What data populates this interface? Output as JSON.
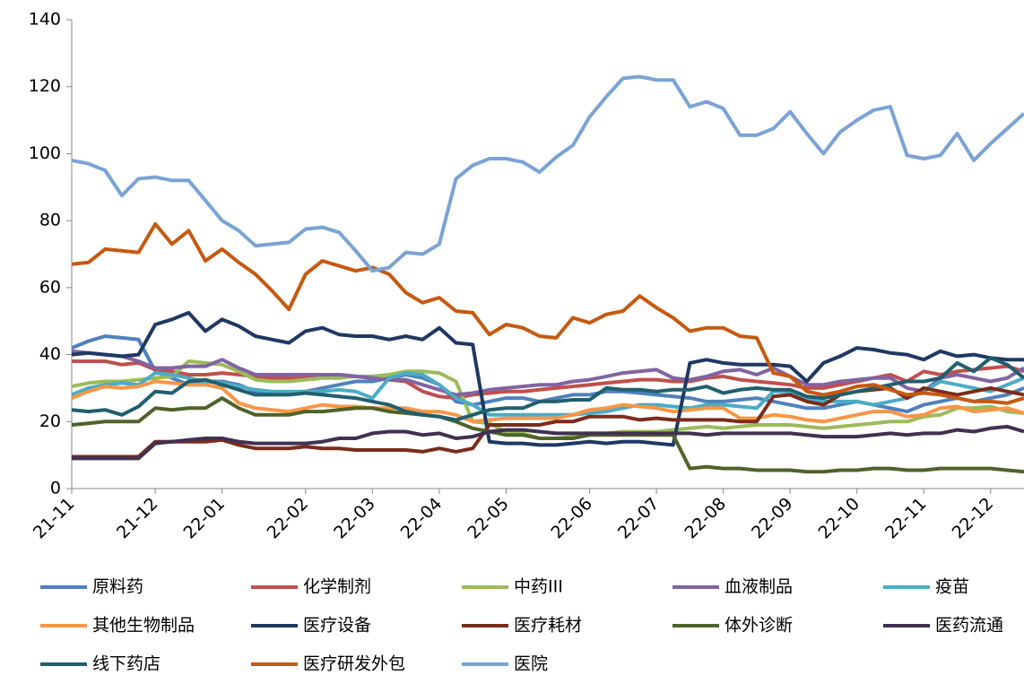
{
  "chart_data": {
    "type": "line",
    "categories": [
      "21-11",
      null,
      null,
      null,
      null,
      "21-12",
      null,
      null,
      null,
      "22-01",
      null,
      null,
      null,
      null,
      "22-02",
      null,
      null,
      null,
      "22-03",
      null,
      null,
      null,
      "22-04",
      null,
      null,
      null,
      "22-05",
      null,
      null,
      null,
      null,
      "22-06",
      null,
      null,
      null,
      "22-07",
      null,
      null,
      null,
      "22-08",
      null,
      null,
      null,
      "22-09",
      null,
      null,
      null,
      "22-10",
      null,
      null,
      null,
      "22-11",
      null,
      null,
      null,
      "22-12",
      null,
      null
    ],
    "ylim": [
      0,
      140
    ],
    "yticks": [
      0,
      20,
      40,
      60,
      80,
      100,
      120,
      140
    ],
    "grid": false,
    "legend": "bottom",
    "series": [
      {
        "name": "原料药",
        "color": "#4f81bd",
        "values": [
          42,
          44,
          45.5,
          45,
          44.5,
          35,
          33,
          31,
          32,
          32,
          31,
          29,
          28,
          28.5,
          29,
          30,
          31,
          32,
          32,
          33,
          34,
          33,
          31,
          26,
          25,
          26,
          27,
          27,
          26,
          27,
          28,
          28,
          29,
          29,
          28.5,
          28,
          27.5,
          27,
          26,
          26,
          26.5,
          27,
          26,
          25,
          24,
          24,
          25,
          26,
          25,
          24,
          23,
          25,
          26,
          27,
          26,
          27,
          28,
          30
        ]
      },
      {
        "name": "化学制剂",
        "color": "#c0504d",
        "values": [
          38,
          38,
          38,
          37,
          37.5,
          35.5,
          35,
          34,
          34,
          34.5,
          34,
          33.5,
          33,
          33,
          33.5,
          34,
          34,
          33.5,
          33,
          32.5,
          32,
          29,
          27.5,
          27,
          28,
          28.5,
          29,
          29,
          29.5,
          30,
          30.5,
          31,
          31.5,
          32,
          32.5,
          32.5,
          32,
          32,
          33,
          33.5,
          32.5,
          32,
          31.5,
          31,
          30,
          30,
          31,
          32,
          33,
          34,
          32,
          35,
          34,
          35,
          35.5,
          36,
          36.5,
          35
        ]
      },
      {
        "name": "中药III",
        "color": "#9bbb59",
        "values": [
          30.5,
          31.5,
          32,
          32,
          32.5,
          33,
          33.5,
          38,
          37.5,
          37,
          35,
          32.5,
          32,
          32,
          32.5,
          33,
          33,
          33.5,
          33.5,
          34,
          35,
          35,
          34.5,
          32,
          20,
          19.5,
          17,
          16.5,
          15,
          15,
          15.5,
          16,
          16.5,
          17,
          17,
          17,
          17.5,
          18,
          18.5,
          18,
          18.5,
          19,
          19,
          19,
          18.5,
          18,
          18.5,
          19,
          19.5,
          20,
          20,
          21.5,
          22,
          24,
          24,
          24.5,
          23,
          22.5
        ]
      },
      {
        "name": "血液制品",
        "color": "#8064a2",
        "values": [
          41,
          40.5,
          40,
          39.5,
          38,
          36,
          36,
          36.5,
          36.5,
          38.5,
          36,
          34,
          34,
          34,
          34,
          34,
          34,
          33.5,
          33,
          32.5,
          32.5,
          31,
          29.5,
          28,
          28.5,
          29.5,
          30,
          30.5,
          31,
          31,
          32,
          32.5,
          33.5,
          34.5,
          35,
          35.5,
          33,
          32.5,
          33.5,
          35,
          35.5,
          34,
          36,
          33.5,
          31,
          31,
          32,
          32.5,
          33,
          33,
          30,
          29,
          33,
          34,
          33,
          32,
          33,
          36
        ]
      },
      {
        "name": "疫苗",
        "color": "#4bacc6",
        "values": [
          28,
          30,
          31,
          31.5,
          31,
          34.5,
          34,
          33,
          32,
          31.5,
          30.5,
          29.5,
          29,
          29,
          29,
          29,
          29.5,
          29,
          27,
          33,
          34.5,
          34,
          31,
          27,
          25,
          22,
          22,
          22,
          22,
          22,
          22,
          22.5,
          23,
          24,
          25,
          25,
          24.5,
          24,
          25,
          25,
          24.5,
          24,
          29,
          29,
          27,
          26,
          26,
          26,
          25,
          26,
          27,
          29,
          32,
          31,
          30,
          29,
          31,
          33
        ]
      },
      {
        "name": "其他生物制品",
        "color": "#f79646",
        "values": [
          27,
          29,
          30.5,
          30,
          30.5,
          32,
          31.5,
          31,
          31,
          30,
          25.5,
          24,
          23.5,
          23,
          24,
          25,
          24.5,
          24.5,
          24,
          24,
          24,
          23,
          23,
          22,
          20,
          20.5,
          21,
          21,
          21,
          21,
          22,
          23.5,
          24,
          25,
          24.5,
          24,
          23,
          23.5,
          24,
          24,
          21,
          21,
          22,
          21.5,
          20.5,
          20,
          21,
          22,
          23,
          23,
          21.5,
          22,
          24,
          24.5,
          23,
          23.5,
          24,
          22.5
        ]
      },
      {
        "name": "医疗设备",
        "color": "#1f3864",
        "values": [
          40,
          40.5,
          40,
          39.5,
          40,
          49,
          50.5,
          52.5,
          47,
          50.5,
          48.5,
          45.5,
          44.5,
          43.5,
          47,
          48,
          46,
          45.5,
          45.5,
          44.5,
          45.5,
          44.5,
          48,
          43.5,
          43,
          14,
          13.5,
          13.5,
          13,
          13,
          13.5,
          14,
          13.5,
          14,
          14,
          13.5,
          13,
          37.5,
          38.5,
          37.5,
          37,
          37,
          37,
          36.5,
          32,
          37.5,
          39.5,
          42,
          41.5,
          40.5,
          40,
          38.5,
          41,
          39.5,
          40,
          39,
          38.5,
          38.5
        ]
      },
      {
        "name": "医疗耗材",
        "color": "#7b2c1b",
        "values": [
          9.5,
          9.5,
          9.5,
          9.5,
          9.5,
          14,
          14,
          14,
          14,
          14.5,
          13,
          12,
          12,
          12,
          12.5,
          12,
          12,
          11.5,
          11.5,
          11.5,
          11.5,
          11,
          12,
          11,
          12,
          19,
          19,
          19,
          19,
          20,
          20,
          21.5,
          21.5,
          21.5,
          20.5,
          21,
          20.5,
          20.5,
          20.5,
          20.5,
          20,
          20,
          27.5,
          28,
          26,
          25,
          28,
          29,
          29.5,
          30,
          27,
          30,
          29,
          28,
          29,
          30,
          29,
          28
        ]
      },
      {
        "name": "体外诊断",
        "color": "#4f6228",
        "values": [
          19,
          19.5,
          20,
          20,
          20,
          24,
          23.5,
          24,
          24,
          27,
          24,
          22,
          22,
          22,
          23,
          23,
          23.5,
          24,
          24,
          23,
          22.5,
          22,
          21.5,
          20,
          18,
          17,
          16,
          16,
          15,
          15,
          15,
          16,
          16,
          16,
          16,
          16,
          16,
          6,
          6.5,
          6,
          6,
          5.5,
          5.5,
          5.5,
          5,
          5,
          5.5,
          5.5,
          6,
          6,
          5.5,
          5.5,
          6,
          6,
          6,
          6,
          5.5,
          5
        ]
      },
      {
        "name": "医药流通",
        "color": "#403152",
        "values": [
          9,
          9,
          9,
          9,
          9,
          13.5,
          14,
          14.5,
          15,
          15,
          14,
          13.5,
          13.5,
          13.5,
          13.5,
          14,
          15,
          15,
          16.5,
          17,
          17,
          16,
          16.5,
          15,
          15.5,
          17,
          17.5,
          17.5,
          17,
          16.5,
          16.5,
          16.5,
          16.5,
          16.5,
          16.5,
          16.5,
          16.5,
          16.5,
          16,
          16.5,
          16.5,
          16.5,
          16.5,
          16.5,
          16,
          15.5,
          15.5,
          15.5,
          16,
          16.5,
          16,
          16.5,
          16.5,
          17.5,
          17,
          18,
          18.5,
          17
        ]
      },
      {
        "name": "线下药店",
        "color": "#215f6e",
        "values": [
          23.5,
          23,
          23.5,
          22,
          24.5,
          29,
          28.5,
          32,
          32.5,
          31,
          29.5,
          28,
          28,
          28,
          28.5,
          28,
          27.5,
          27,
          26,
          25,
          23,
          22,
          21.5,
          20.5,
          22,
          23.5,
          24,
          24,
          26,
          26,
          26.5,
          26.5,
          30,
          29.5,
          29.5,
          29,
          29.5,
          29.5,
          30.5,
          28.5,
          29.5,
          30,
          29.5,
          29.5,
          27.5,
          27,
          28,
          29,
          30,
          31,
          32,
          32,
          33,
          37.5,
          35,
          39,
          37,
          33
        ]
      },
      {
        "name": "医疗研发外包",
        "color": "#c65911",
        "values": [
          67,
          67.5,
          71.5,
          71,
          70.5,
          79,
          73,
          77,
          68,
          71.5,
          67.5,
          64,
          59,
          53.5,
          64,
          68,
          66.5,
          65,
          66,
          64,
          58.5,
          55.5,
          57,
          53,
          52.5,
          46,
          49,
          48,
          45.5,
          45,
          51,
          49.5,
          52,
          53,
          57.5,
          54,
          51,
          47,
          48,
          48,
          45.5,
          45,
          34.5,
          33.5,
          29,
          28,
          29,
          30.5,
          31,
          29.5,
          28,
          28.5,
          28,
          27,
          26,
          26,
          25.5,
          27
        ]
      },
      {
        "name": "医院",
        "color": "#7aa3d6",
        "values": [
          98,
          97,
          95,
          87.5,
          92.5,
          93,
          92,
          92,
          86,
          80,
          77,
          72.5,
          73,
          73.5,
          77.5,
          78,
          76.5,
          71,
          65,
          66,
          70.5,
          70,
          73,
          92.5,
          96.5,
          98.5,
          98.5,
          97.5,
          94.5,
          99,
          102.5,
          111,
          117,
          122.5,
          123,
          122,
          122,
          114,
          115.5,
          113.5,
          105.5,
          105.5,
          107.5,
          112.5,
          106,
          100,
          106.5,
          110,
          113,
          114,
          99.5,
          98.5,
          99.5,
          106,
          98,
          103,
          107.5,
          112
        ]
      }
    ]
  }
}
